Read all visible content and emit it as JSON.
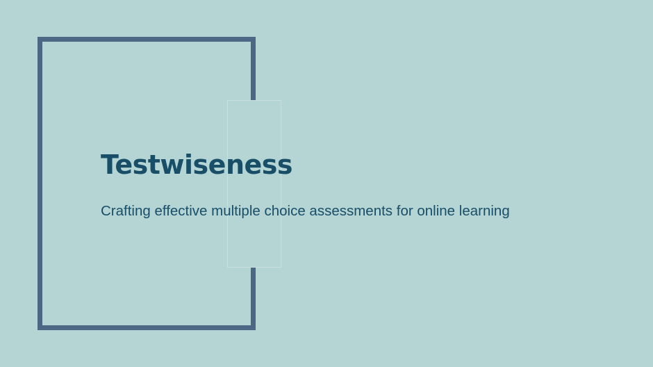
{
  "slide": {
    "title": "Testwiseness",
    "subtitle": "Crafting effective multiple choice assessments for online learning"
  },
  "colors": {
    "background": "#b5d4d4",
    "frame": "#4b6784",
    "text": "#184e68"
  }
}
